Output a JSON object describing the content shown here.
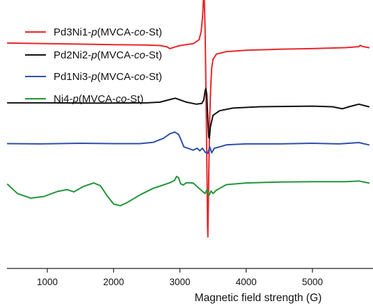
{
  "chart_data": {
    "type": "line",
    "title": "",
    "xlabel": "Magnetic field strength (G)",
    "ylabel": "",
    "xlim": [
      400,
      5850
    ],
    "ylim": [
      0,
      4
    ],
    "grid": false,
    "legend_position": "top-left",
    "x_ticks": [
      1000,
      2000,
      3000,
      4000,
      5000
    ],
    "x_tick_labels": [
      "1000",
      "2000",
      "3000",
      "4000",
      "5000"
    ],
    "series": [
      {
        "name": "Pd3Ni1-p(MVCA-co-St)",
        "name_parts": [
          {
            "text": "Pd3Ni1-",
            "italic": false
          },
          {
            "text": "p",
            "italic": true
          },
          {
            "text": "(MVCA-",
            "italic": false
          },
          {
            "text": "co",
            "italic": true
          },
          {
            "text": "-St)",
            "italic": false
          }
        ],
        "color": "#e8262a",
        "points": [
          [
            400,
            3.43
          ],
          [
            1000,
            3.42
          ],
          [
            2000,
            3.405
          ],
          [
            2500,
            3.4
          ],
          [
            2700,
            3.392
          ],
          [
            2800,
            3.375
          ],
          [
            2850,
            3.345
          ],
          [
            2900,
            3.362
          ],
          [
            3000,
            3.392
          ],
          [
            3200,
            3.42
          ],
          [
            3290,
            3.48
          ],
          [
            3320,
            3.6
          ],
          [
            3340,
            3.8
          ],
          [
            3355,
            4.08
          ],
          [
            3362,
            4.125
          ],
          [
            3370,
            4.06
          ],
          [
            3380,
            3.65
          ],
          [
            3390,
            3.0
          ],
          [
            3400,
            2.2
          ],
          [
            3410,
            1.3
          ],
          [
            3418,
            0.62
          ],
          [
            3422,
            0.48
          ],
          [
            3430,
            1.0
          ],
          [
            3440,
            1.7
          ],
          [
            3450,
            2.3
          ],
          [
            3465,
            2.75
          ],
          [
            3480,
            3.05
          ],
          [
            3500,
            3.18
          ],
          [
            3550,
            3.26
          ],
          [
            3700,
            3.3
          ],
          [
            4000,
            3.32
          ],
          [
            4500,
            3.335
          ],
          [
            5000,
            3.345
          ],
          [
            5500,
            3.36
          ],
          [
            5700,
            3.375
          ],
          [
            5720,
            3.395
          ],
          [
            5750,
            3.38
          ],
          [
            5850,
            3.36
          ]
        ]
      },
      {
        "name": "Pd2Ni2-p(MVCA-co-St)",
        "name_parts": [
          {
            "text": "Pd2Ni2-",
            "italic": false
          },
          {
            "text": "p",
            "italic": true
          },
          {
            "text": "(MVCA-",
            "italic": false
          },
          {
            "text": "co",
            "italic": true
          },
          {
            "text": "-St)",
            "italic": false
          }
        ],
        "color": "#111111",
        "points": [
          [
            400,
            2.52
          ],
          [
            1000,
            2.52
          ],
          [
            1800,
            2.515
          ],
          [
            2500,
            2.52
          ],
          [
            2700,
            2.53
          ],
          [
            2850,
            2.57
          ],
          [
            2930,
            2.59
          ],
          [
            3000,
            2.565
          ],
          [
            3100,
            2.53
          ],
          [
            3250,
            2.5
          ],
          [
            3330,
            2.51
          ],
          [
            3360,
            2.56
          ],
          [
            3380,
            2.7
          ],
          [
            3392,
            2.74
          ],
          [
            3405,
            2.65
          ],
          [
            3420,
            2.3
          ],
          [
            3435,
            2.0
          ],
          [
            3445,
            1.98
          ],
          [
            3460,
            2.15
          ],
          [
            3500,
            2.33
          ],
          [
            3600,
            2.4
          ],
          [
            3800,
            2.44
          ],
          [
            4200,
            2.46
          ],
          [
            5000,
            2.47
          ],
          [
            5300,
            2.46
          ],
          [
            5450,
            2.43
          ],
          [
            5550,
            2.46
          ],
          [
            5700,
            2.5
          ],
          [
            5850,
            2.46
          ]
        ]
      },
      {
        "name": "Pd1Ni3-p(MVCA-co-St)",
        "name_parts": [
          {
            "text": "Pd1Ni3-",
            "italic": false
          },
          {
            "text": "p",
            "italic": true
          },
          {
            "text": "(MVCA-",
            "italic": false
          },
          {
            "text": "co",
            "italic": true
          },
          {
            "text": "-St)",
            "italic": false
          }
        ],
        "color": "#2f4fa8",
        "points": [
          [
            400,
            1.9
          ],
          [
            900,
            1.895
          ],
          [
            1500,
            1.905
          ],
          [
            2000,
            1.9
          ],
          [
            2400,
            1.9
          ],
          [
            2600,
            1.92
          ],
          [
            2750,
            1.98
          ],
          [
            2850,
            2.05
          ],
          [
            2920,
            2.075
          ],
          [
            2980,
            2.04
          ],
          [
            3020,
            1.95
          ],
          [
            3060,
            1.85
          ],
          [
            3120,
            1.83
          ],
          [
            3200,
            1.8
          ],
          [
            3260,
            1.83
          ],
          [
            3300,
            1.79
          ],
          [
            3340,
            1.83
          ],
          [
            3380,
            1.77
          ],
          [
            3420,
            1.75
          ],
          [
            3450,
            1.85
          ],
          [
            3480,
            1.76
          ],
          [
            3520,
            1.83
          ],
          [
            3600,
            1.85
          ],
          [
            3700,
            1.88
          ],
          [
            4000,
            1.895
          ],
          [
            4500,
            1.895
          ],
          [
            5000,
            1.905
          ],
          [
            5400,
            1.895
          ],
          [
            5700,
            1.915
          ],
          [
            5850,
            1.88
          ]
        ]
      },
      {
        "name": "Ni4-p(MVCA-co-St)",
        "name_parts": [
          {
            "text": "Ni4-",
            "italic": false
          },
          {
            "text": "p",
            "italic": true
          },
          {
            "text": "(MVCA-",
            "italic": false
          },
          {
            "text": "co",
            "italic": true
          },
          {
            "text": "-St)",
            "italic": false
          }
        ],
        "color": "#23953a",
        "points": [
          [
            400,
            1.28
          ],
          [
            550,
            1.14
          ],
          [
            750,
            1.07
          ],
          [
            950,
            1.095
          ],
          [
            1150,
            1.17
          ],
          [
            1300,
            1.2
          ],
          [
            1400,
            1.165
          ],
          [
            1550,
            1.25
          ],
          [
            1700,
            1.3
          ],
          [
            1800,
            1.26
          ],
          [
            1900,
            1.11
          ],
          [
            2000,
            0.98
          ],
          [
            2100,
            0.955
          ],
          [
            2200,
            1.0
          ],
          [
            2400,
            1.12
          ],
          [
            2600,
            1.22
          ],
          [
            2750,
            1.27
          ],
          [
            2850,
            1.305
          ],
          [
            2920,
            1.34
          ],
          [
            2950,
            1.4
          ],
          [
            2980,
            1.38
          ],
          [
            3010,
            1.29
          ],
          [
            3050,
            1.27
          ],
          [
            3100,
            1.305
          ],
          [
            3200,
            1.3
          ],
          [
            3300,
            1.21
          ],
          [
            3380,
            1.14
          ],
          [
            3410,
            1.2
          ],
          [
            3440,
            1.11
          ],
          [
            3470,
            1.18
          ],
          [
            3500,
            1.14
          ],
          [
            3550,
            1.19
          ],
          [
            3700,
            1.275
          ],
          [
            4000,
            1.3
          ],
          [
            4500,
            1.315
          ],
          [
            5000,
            1.32
          ],
          [
            5500,
            1.32
          ],
          [
            5700,
            1.33
          ],
          [
            5850,
            1.3
          ]
        ]
      }
    ]
  }
}
